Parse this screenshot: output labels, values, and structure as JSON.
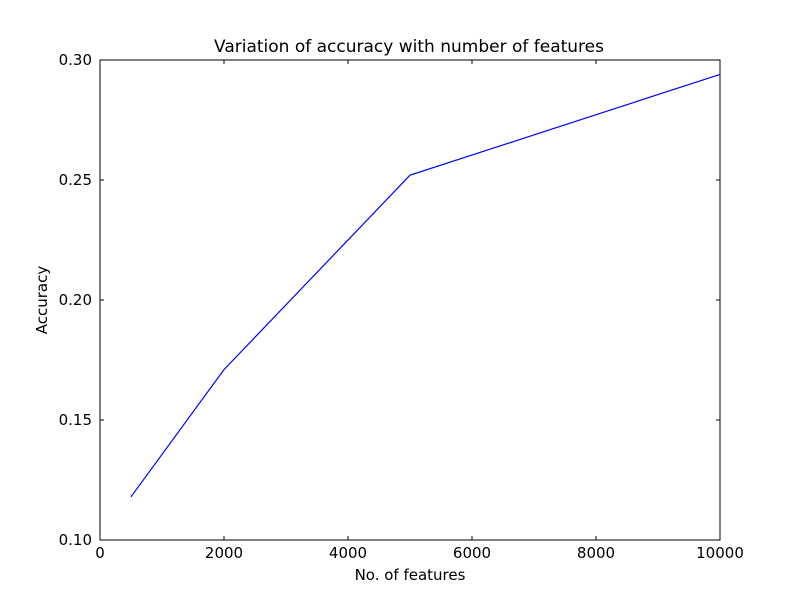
{
  "chart_data": {
    "type": "line",
    "title": "Variation of accuracy with number of features",
    "xlabel": "No. of features",
    "ylabel": "Accuracy",
    "xlim": [
      0,
      10000
    ],
    "ylim": [
      0.1,
      0.3
    ],
    "xticks": [
      0,
      2000,
      4000,
      6000,
      8000,
      10000
    ],
    "xtick_labels": [
      "0",
      "2000",
      "4000",
      "6000",
      "8000",
      "10000"
    ],
    "yticks": [
      0.1,
      0.15,
      0.2,
      0.25,
      0.3
    ],
    "ytick_labels": [
      "0.10",
      "0.15",
      "0.20",
      "0.25",
      "0.30"
    ],
    "grid": false,
    "series": [
      {
        "color": "#0000ff",
        "x": [
          500,
          2000,
          5000,
          10000
        ],
        "y": [
          0.118,
          0.171,
          0.252,
          0.294
        ]
      }
    ]
  }
}
